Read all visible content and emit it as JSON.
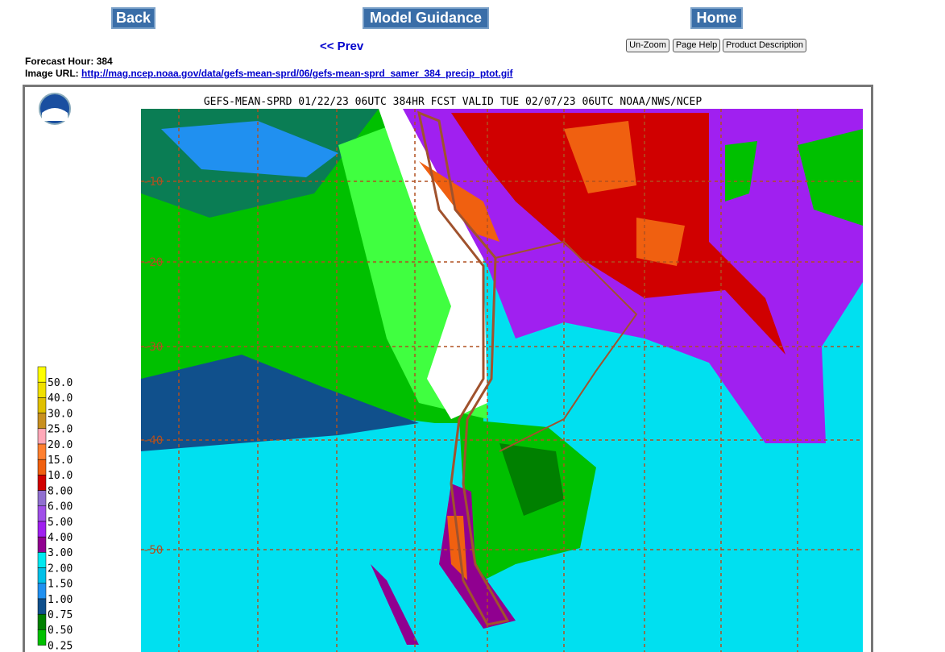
{
  "nav": {
    "back": "Back",
    "model_guidance": "Model Guidance",
    "home": "Home",
    "prev": "<< Prev",
    "buttons": [
      "Un-Zoom",
      "Page Help",
      "Product Description"
    ]
  },
  "info": {
    "forecast_hour_label": "Forecast Hour:",
    "forecast_hour": 384,
    "image_url_label": "Image URL:",
    "image_url": "http://mag.ncep.noaa.gov/data/gefs-mean-sprd/06/gefs-mean-sprd_samer_384_precip_ptot.gif"
  },
  "map": {
    "title": "GEFS-MEAN-SPRD 01/22/23 06UTC 384HR FCST VALID TUE 02/07/23 06UTC NOAA/NWS/NCEP",
    "latitude_labels": [
      "-10",
      "-20",
      "-30",
      "-40",
      "-50"
    ],
    "legend": [
      {
        "label": "50.0",
        "color": "#ffff00"
      },
      {
        "label": "40.0",
        "color": "#f0e000"
      },
      {
        "label": "30.0",
        "color": "#e0c000"
      },
      {
        "label": "25.0",
        "color": "#c89020"
      },
      {
        "label": "20.0",
        "color": "#ffa8b8"
      },
      {
        "label": "15.0",
        "color": "#ff8030"
      },
      {
        "label": "10.0",
        "color": "#f06010"
      },
      {
        "label": "8.00",
        "color": "#d00000"
      },
      {
        "label": "6.00",
        "color": "#9070d0"
      },
      {
        "label": "5.00",
        "color": "#a050e8"
      },
      {
        "label": "4.00",
        "color": "#a020f0"
      },
      {
        "label": "3.00",
        "color": "#900090"
      },
      {
        "label": "2.00",
        "color": "#00e8f0"
      },
      {
        "label": "1.50",
        "color": "#00c0e8"
      },
      {
        "label": "1.00",
        "color": "#2090f0"
      },
      {
        "label": "0.75",
        "color": "#10508c"
      },
      {
        "label": "0.50",
        "color": "#008000"
      },
      {
        "label": "0.25",
        "color": "#00c000"
      }
    ]
  }
}
